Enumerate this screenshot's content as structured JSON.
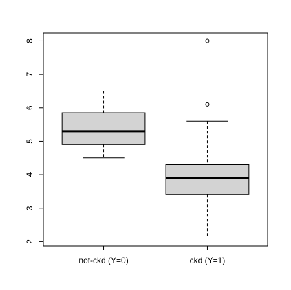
{
  "chart_data": {
    "type": "box",
    "categories": [
      "not-ckd (Y=0)",
      "ckd (Y=1)"
    ],
    "boxes": [
      {
        "min": 4.5,
        "q1": 4.9,
        "median": 5.3,
        "q3": 5.85,
        "max": 6.5,
        "outliers": []
      },
      {
        "min": 2.1,
        "q1": 3.4,
        "median": 3.9,
        "q3": 4.3,
        "max": 5.6,
        "outliers": [
          6.1,
          8
        ]
      }
    ],
    "color": "#d3d3d3",
    "ylim": [
      1.864,
      8.236
    ],
    "yticks": [
      2,
      3,
      4,
      5,
      6,
      7,
      8
    ]
  }
}
